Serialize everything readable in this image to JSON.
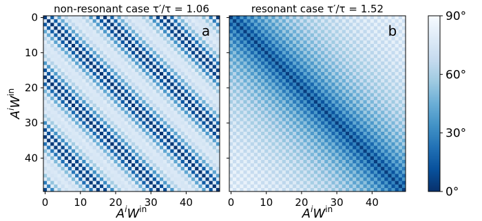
{
  "chart_data": [
    {
      "type": "heatmap",
      "title": "non-resonant case τ′/τ = 1.06",
      "panel_label": "a",
      "ratio": 1.06,
      "xlabel": "AⁱWⁱⁿ",
      "ylabel": "AⁱWⁱⁿ",
      "grid_size": 50,
      "xlim": [
        0,
        49
      ],
      "ylim": [
        49,
        0
      ],
      "xticks": [
        "0",
        "10",
        "20",
        "30",
        "40"
      ],
      "yticks": [
        "0",
        "10",
        "20",
        "30",
        "40"
      ],
      "value_range_deg": [
        0,
        90
      ]
    },
    {
      "type": "heatmap",
      "title": "resonant case τ′/τ = 1.52",
      "panel_label": "b",
      "ratio": 1.52,
      "xlabel": "AⁱWⁱⁿ",
      "grid_size": 50,
      "xlim": [
        0,
        49
      ],
      "ylim": [
        49,
        0
      ],
      "xticks": [
        "0",
        "10",
        "20",
        "30",
        "40"
      ],
      "yticks": [
        "0",
        "10",
        "20",
        "30",
        "40"
      ],
      "value_range_deg": [
        0,
        90
      ]
    }
  ],
  "colorbar": {
    "colormap": "Blues_r",
    "ticks": [
      "0°",
      "30°",
      "60°",
      "90°"
    ],
    "tick_values": [
      0,
      30,
      60,
      90
    ],
    "range": [
      0,
      90
    ],
    "color_low": "#08306b",
    "color_high": "#f7fbff"
  },
  "axis_labels": {
    "xlabel": "A",
    "xlabel_sup": "i",
    "xlabel_sub": "W",
    "xlabel_sub_sup": "in",
    "ylabel": "A",
    "ylabel_sup": "i",
    "ylabel_sub": "W",
    "ylabel_sub_sup": "in"
  }
}
